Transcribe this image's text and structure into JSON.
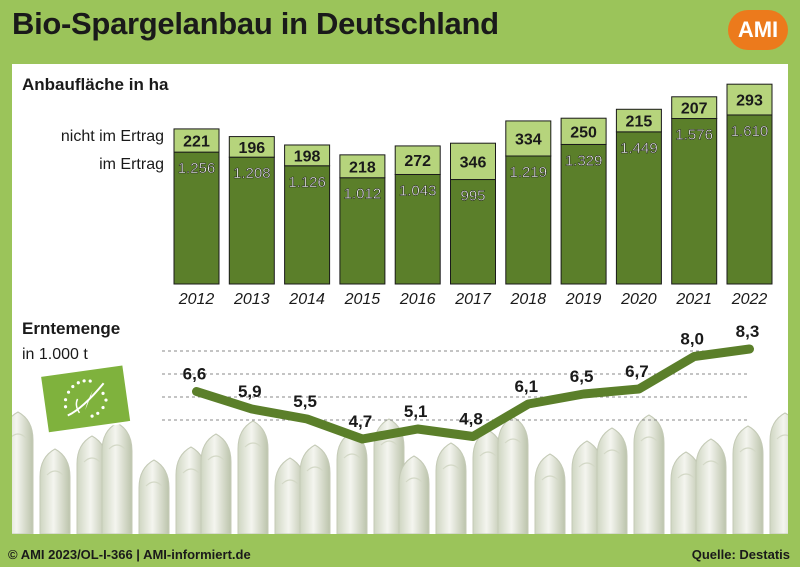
{
  "header": {
    "title": "Bio-Spargelanbau in Deutschland",
    "logo": "AMI"
  },
  "footer": {
    "copyright": "© AMI 2023/OL-I-366 | AMI-informiert.de",
    "source": "Quelle: Destatis"
  },
  "colors": {
    "bar_dark": "#5b7f2a",
    "bar_light": "#b6d47c",
    "line": "#5b7f2a",
    "background": "#9bc45a",
    "logo": "#ec7a1c"
  },
  "icons": [
    "eu-organic-leaf-logo",
    "asparagus-background"
  ],
  "chart_data": [
    {
      "type": "bar",
      "stacked": true,
      "title": "Anbaufläche in ha",
      "categories": [
        "2012",
        "2013",
        "2014",
        "2015",
        "2016",
        "2017",
        "2018",
        "2019",
        "2020",
        "2021",
        "2022"
      ],
      "series": [
        {
          "name": "im Ertrag",
          "values": [
            1256,
            1208,
            1126,
            1012,
            1043,
            995,
            1219,
            1329,
            1449,
            1576,
            1610
          ],
          "labels": [
            "1.256",
            "1.208",
            "1.126",
            "1.012",
            "1.043",
            "995",
            "1.219",
            "1.329",
            "1.449",
            "1.576",
            "1.610"
          ]
        },
        {
          "name": "nicht im Ertrag",
          "values": [
            221,
            196,
            198,
            218,
            272,
            346,
            334,
            250,
            215,
            207,
            293
          ],
          "labels": [
            "221",
            "196",
            "198",
            "218",
            "272",
            "346",
            "334",
            "250",
            "215",
            "207",
            "293"
          ]
        }
      ]
    },
    {
      "type": "line",
      "title": "Erntemenge",
      "subtitle": "in 1.000 t",
      "x": [
        "2012",
        "2013",
        "2014",
        "2015",
        "2016",
        "2017",
        "2018",
        "2019",
        "2020",
        "2021",
        "2022"
      ],
      "values": [
        6.6,
        5.9,
        5.5,
        4.7,
        5.1,
        4.8,
        6.1,
        6.5,
        6.7,
        8.0,
        8.3
      ],
      "labels": [
        "6,6",
        "5,9",
        "5,5",
        "4,7",
        "5,1",
        "4,8",
        "6,1",
        "6,5",
        "6,7",
        "8,0",
        "8,3"
      ],
      "grid": true
    }
  ]
}
